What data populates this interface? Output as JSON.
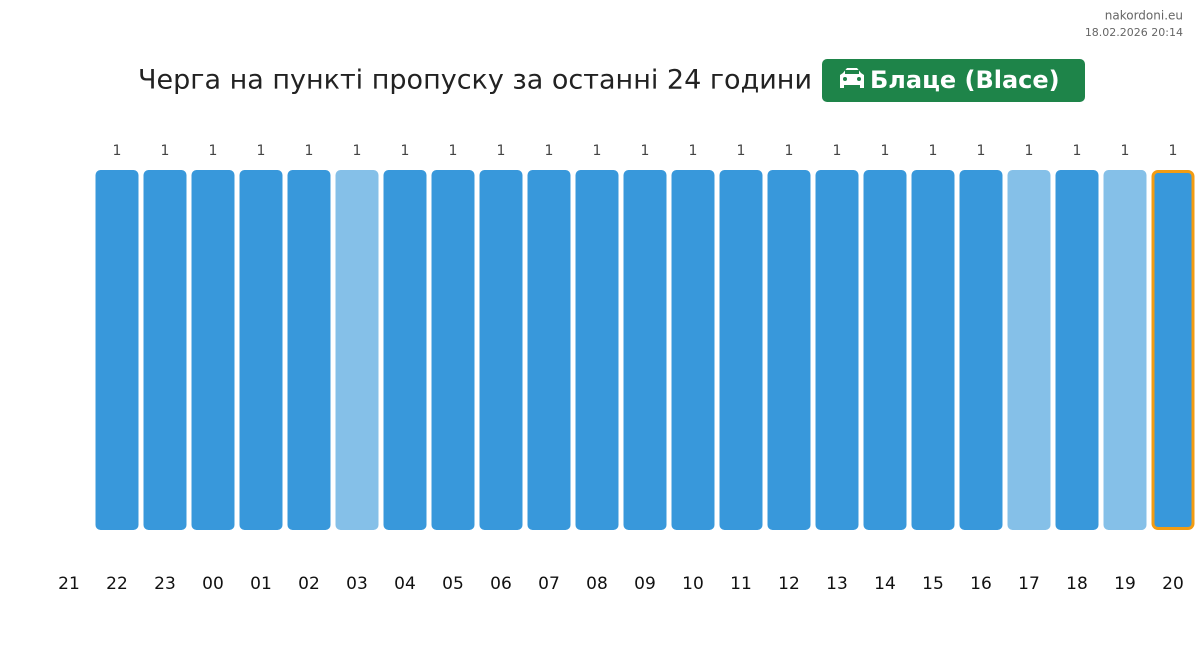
{
  "chart_data": {
    "type": "bar",
    "title": "Черга на пункті пропуску за останні 24 години",
    "badge": "Блаце (Blace)",
    "site": "nakordoni.eu",
    "timestamp": "18.02.2026 20:14",
    "categories": [
      "21",
      "22",
      "23",
      "00",
      "01",
      "02",
      "03",
      "04",
      "05",
      "06",
      "07",
      "08",
      "09",
      "10",
      "11",
      "12",
      "13",
      "14",
      "15",
      "16",
      "17",
      "18",
      "19",
      "20"
    ],
    "values": [
      null,
      1,
      1,
      1,
      1,
      1,
      1,
      1,
      1,
      1,
      1,
      1,
      1,
      1,
      1,
      1,
      1,
      1,
      1,
      1,
      1,
      1,
      1,
      1
    ],
    "colors": [
      null,
      "#3898db",
      "#3898db",
      "#3898db",
      "#3898db",
      "#3898db",
      "#85c0e8",
      "#3898db",
      "#3898db",
      "#3898db",
      "#3898db",
      "#3898db",
      "#3898db",
      "#3898db",
      "#3898db",
      "#3898db",
      "#3898db",
      "#3898db",
      "#3898db",
      "#3898db",
      "#85c0e8",
      "#3898db",
      "#85c0e8",
      "#3898db"
    ],
    "current": "20",
    "current_color": "#f39c12"
  }
}
